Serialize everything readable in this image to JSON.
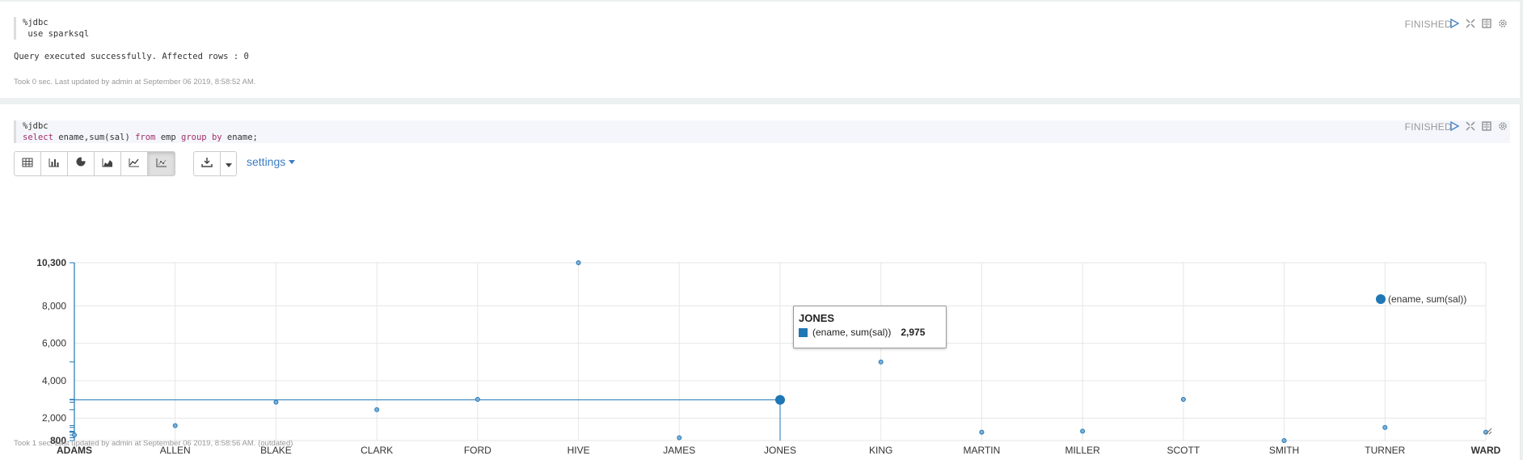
{
  "paragraph1": {
    "code_lines": [
      "%jdbc",
      " use sparksql"
    ],
    "status": "FINISHED",
    "result_text": "Query executed successfully. Affected rows : 0",
    "footer": "Took 0 sec. Last updated by admin at September 06 2019, 8:58:52 AM."
  },
  "paragraph2": {
    "code_line1": "%jdbc",
    "code_tokens": [
      {
        "t": "select",
        "kw": true
      },
      {
        "t": " ename,sum(sal) ",
        "kw": false
      },
      {
        "t": "from",
        "kw": true
      },
      {
        "t": " emp ",
        "kw": false
      },
      {
        "t": "group",
        "kw": true
      },
      {
        "t": " ",
        "kw": false
      },
      {
        "t": "by",
        "kw": true
      },
      {
        "t": " ename;",
        "kw": false
      }
    ],
    "status": "FINISHED",
    "view_buttons": [
      {
        "name": "table-view-button",
        "icon": "table-icon"
      },
      {
        "name": "bar-chart-button",
        "icon": "bar-chart-icon"
      },
      {
        "name": "pie-chart-button",
        "icon": "pie-chart-icon"
      },
      {
        "name": "area-chart-button",
        "icon": "area-chart-icon"
      },
      {
        "name": "line-chart-button",
        "icon": "line-chart-icon"
      },
      {
        "name": "scatter-chart-button",
        "icon": "scatter-chart-icon",
        "active": true
      }
    ],
    "settings_label": "settings",
    "footer": "Took 1 sec. Last updated by admin at September 06 2019, 8:58:56 AM. (outdated)",
    "tooltip": {
      "title": "JONES",
      "series": "(ename, sum(sal))",
      "value": "2,975"
    }
  },
  "header_icons": [
    "run-icon",
    "expand-icon",
    "book-icon",
    "gear-icon"
  ],
  "colors": {
    "accent": "#1f77b4",
    "link": "#3b7cc0"
  },
  "chart_data": {
    "type": "scatter",
    "categories": [
      "ADAMS",
      "ALLEN",
      "BLAKE",
      "CLARK",
      "FORD",
      "HIVE",
      "JAMES",
      "JONES",
      "KING",
      "MARTIN",
      "MILLER",
      "SCOTT",
      "SMITH",
      "TURNER",
      "WARD"
    ],
    "series": [
      {
        "name": "(ename, sum(sal))",
        "values": [
          1100,
          1600,
          2850,
          2450,
          3000,
          10300,
          950,
          2975,
          5000,
          1250,
          1300,
          3000,
          800,
          1500,
          1250
        ]
      }
    ],
    "ylim": [
      800,
      10300
    ],
    "yticks": [
      800,
      2000,
      4000,
      6000,
      8000,
      10300
    ],
    "ytick_labels": [
      "800",
      "2,000",
      "4,000",
      "6,000",
      "8,000",
      "10,300"
    ],
    "highlight": "JONES",
    "legend": "top-right",
    "grid": true
  }
}
